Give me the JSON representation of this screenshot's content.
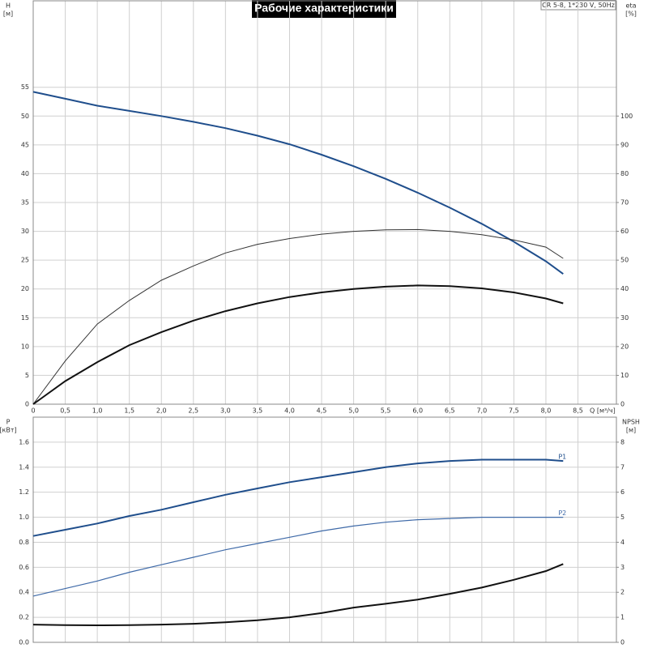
{
  "chart_data": [
    {
      "type": "line",
      "title": "Рабочие характеристики",
      "subtitle": "CR 5-8, 1*230 V, 50Hz",
      "ylabel": "H",
      "ylabel_unit": "[м]",
      "y2label": "eta",
      "y2label_unit": "[%]",
      "xlabel": "Q [м³/ч]",
      "xlim": [
        0,
        9.1
      ],
      "ylim": [
        0,
        70
      ],
      "y2lim": [
        0,
        140
      ],
      "xticks": [
        0,
        {
          "value": 0.5,
          "label": "0,5"
        },
        {
          "value": 1,
          "label": "1,0"
        },
        {
          "value": 1.5,
          "label": "1,5"
        },
        {
          "value": 2,
          "label": "2,0"
        },
        {
          "value": 2.5,
          "label": "2,5"
        },
        {
          "value": 3,
          "label": "3,0"
        },
        {
          "value": 3.5,
          "label": "3,5"
        },
        {
          "value": 4,
          "label": "4,0"
        },
        {
          "value": 4.5,
          "label": "4,5"
        },
        {
          "value": 5,
          "label": "5,0"
        },
        {
          "value": 5.5,
          "label": "5,5"
        },
        {
          "value": 6,
          "label": "6,0"
        },
        {
          "value": 6.5,
          "label": "6,5"
        },
        {
          "value": 7,
          "label": "7,0"
        },
        {
          "value": 7.5,
          "label": "7,5"
        },
        {
          "value": 8,
          "label": "8,0"
        },
        {
          "value": 8.5,
          "label": "8,5"
        }
      ],
      "yticks": [
        0,
        5,
        10,
        15,
        20,
        25,
        30,
        35,
        40,
        45,
        50,
        55
      ],
      "y2ticks": [
        0,
        10,
        20,
        30,
        40,
        50,
        60,
        70,
        80,
        90,
        100
      ],
      "grid": true,
      "x": [
        0,
        0.5,
        1,
        1.5,
        2,
        2.5,
        3,
        3.5,
        4,
        4.5,
        5,
        5.5,
        6,
        6.5,
        7,
        7.5,
        8,
        8.27
      ],
      "series": [
        {
          "color": "#1f4e8c",
          "width": 2,
          "values": [
            54.2,
            53,
            51.8,
            50.9,
            50,
            49,
            47.9,
            46.6,
            45.1,
            43.3,
            41.3,
            39.1,
            36.7,
            34.1,
            31.3,
            28.2,
            24.8,
            22.6
          ]
        },
        {
          "color": "#333333",
          "width": 1,
          "axis": "y2",
          "values": [
            0,
            15,
            27.8,
            36,
            43,
            48,
            52.5,
            55.5,
            57.5,
            59,
            60,
            60.5,
            60.6,
            60,
            58.8,
            57,
            54.5,
            50.6
          ]
        },
        {
          "color": "#111111",
          "width": 2,
          "axis": "y2",
          "values": [
            0,
            8,
            14.6,
            20.5,
            25,
            29,
            32.3,
            35,
            37.2,
            38.8,
            40,
            40.8,
            41.2,
            41,
            40.2,
            38.8,
            36.7,
            35
          ]
        }
      ]
    },
    {
      "type": "line",
      "ylabel": "P",
      "ylabel_unit": "[кВт]",
      "y2label": "NPSH",
      "y2label_unit": "[м]",
      "xlim": [
        0,
        9.1
      ],
      "ylim": [
        0,
        1.8
      ],
      "y2lim": [
        0,
        9
      ],
      "yticks": [
        {
          "value": 0,
          "label": "0.0"
        },
        {
          "value": 0.2,
          "label": "0.2"
        },
        {
          "value": 0.4,
          "label": "0.4"
        },
        {
          "value": 0.6,
          "label": "0.6"
        },
        {
          "value": 0.8,
          "label": "0.8"
        },
        {
          "value": 1,
          "label": "1.0"
        },
        {
          "value": 1.2,
          "label": "1.2"
        },
        {
          "value": 1.4,
          "label": "1.4"
        },
        {
          "value": 1.6,
          "label": "1.6"
        }
      ],
      "y2ticks": [
        0,
        1,
        2,
        3,
        4,
        5,
        6,
        7,
        8
      ],
      "grid": true,
      "x": [
        0,
        0.5,
        1,
        1.5,
        2,
        2.5,
        3,
        3.5,
        4,
        4.5,
        5,
        5.5,
        6,
        6.5,
        7,
        7.5,
        8,
        8.27
      ],
      "series": [
        {
          "name": "P1",
          "color": "#1f4e8c",
          "width": 2,
          "values": [
            0.85,
            0.9,
            0.95,
            1.01,
            1.06,
            1.12,
            1.18,
            1.23,
            1.28,
            1.32,
            1.36,
            1.4,
            1.43,
            1.45,
            1.46,
            1.46,
            1.46,
            1.45
          ]
        },
        {
          "name": "P2",
          "color": "#3f6aa8",
          "width": 1.2,
          "values": [
            0.37,
            0.43,
            0.49,
            0.56,
            0.62,
            0.68,
            0.74,
            0.79,
            0.84,
            0.89,
            0.93,
            0.96,
            0.98,
            0.99,
            1,
            1,
            1,
            1
          ]
        },
        {
          "color": "#111111",
          "width": 2,
          "axis": "y2",
          "values": [
            0.71,
            0.69,
            0.68,
            0.69,
            0.71,
            0.74,
            0.8,
            0.88,
            1,
            1.17,
            1.39,
            1.54,
            1.71,
            1.94,
            2.19,
            2.5,
            2.85,
            3.13
          ]
        }
      ]
    }
  ]
}
